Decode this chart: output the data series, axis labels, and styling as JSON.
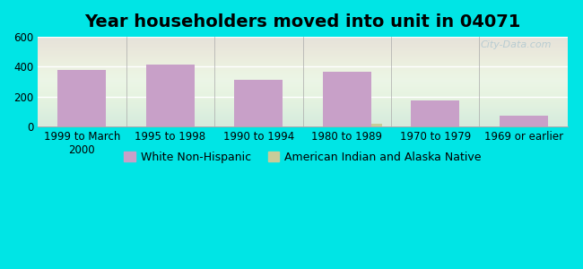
{
  "title": "Year householders moved into unit in 04071",
  "categories": [
    "1999 to March\n2000",
    "1995 to 1998",
    "1990 to 1994",
    "1980 to 1989",
    "1970 to 1979",
    "1969 or earlier"
  ],
  "white_non_hispanic": [
    380,
    415,
    315,
    365,
    175,
    72
  ],
  "american_indian": [
    0,
    0,
    0,
    18,
    0,
    0
  ],
  "bar_color_white": "#c8a0c8",
  "bar_color_native": "#c8cc99",
  "background_outer": "#00e5e5",
  "background_inner_top": "#e8f5f0",
  "background_inner_bottom": "#d8eed8",
  "ylim": [
    0,
    600
  ],
  "yticks": [
    0,
    200,
    400,
    600
  ],
  "title_fontsize": 14,
  "tick_fontsize": 8.5,
  "legend_label_white": "White Non-Hispanic",
  "legend_label_native": "American Indian and Alaska Native",
  "watermark": "City-Data.com"
}
